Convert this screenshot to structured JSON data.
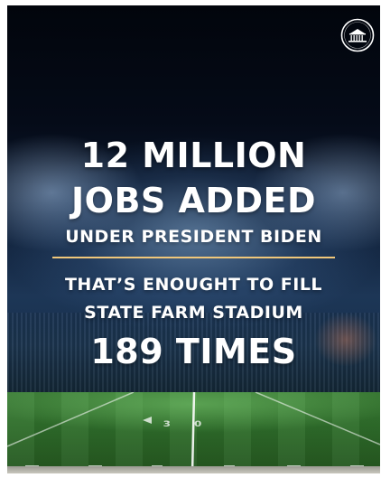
{
  "graphic": {
    "headline_line1": "12 MILLION",
    "headline_line2": "JOBS ADDED",
    "subheadline": "UNDER PRESIDENT BIDEN",
    "comparison_line1": "THAT’S ENOUGHT TO FILL",
    "comparison_line2": "STATE FARM STADIUM",
    "comparison_figure": "189 TIMES",
    "field_yard_number": "30"
  },
  "colors": {
    "text": "#ffffff",
    "divider": "#f0c77a",
    "field": "#2f6e2b",
    "sky": "#050b18"
  },
  "icons": {
    "logo": "white-house-seal-icon"
  }
}
